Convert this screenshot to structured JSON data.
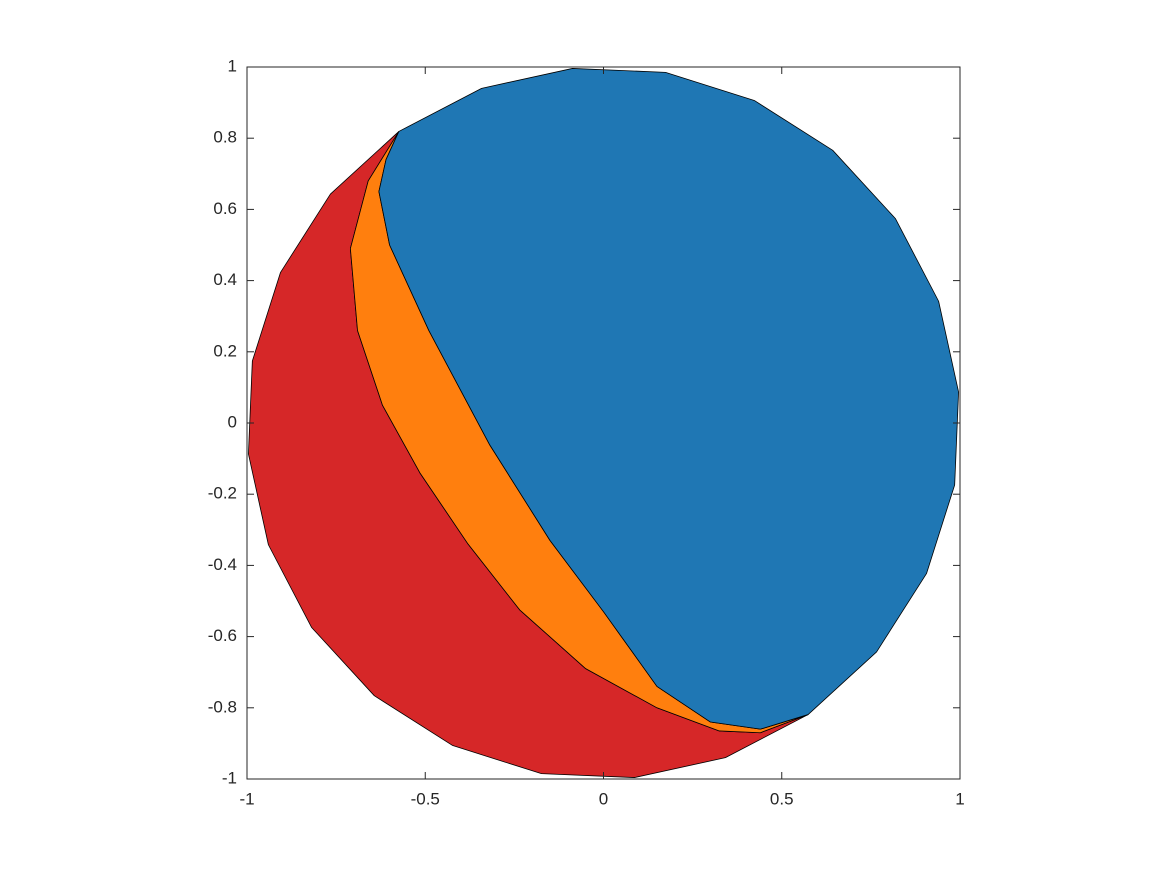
{
  "chart_data": {
    "type": "patch",
    "xlim": [
      -1,
      1
    ],
    "ylim": [
      -1,
      1
    ],
    "xticks": [
      -1,
      -0.5,
      0,
      0.5,
      1
    ],
    "yticks": [
      -1,
      -0.8,
      -0.6,
      -0.4,
      -0.2,
      0,
      0.2,
      0.4,
      0.6,
      0.8,
      1
    ],
    "series": [
      {
        "color": "#d62728",
        "x": [
          -0.574,
          -0.766,
          -0.906,
          -0.985,
          -0.996,
          -0.94,
          -0.819,
          -0.643,
          -0.423,
          -0.174,
          0.087,
          0.342,
          0.574,
          0.44,
          0.325,
          0.15,
          -0.05,
          -0.235,
          -0.38,
          -0.515,
          -0.62,
          -0.69,
          -0.71,
          -0.66
        ],
        "y": [
          0.819,
          0.643,
          0.423,
          0.174,
          -0.087,
          -0.342,
          -0.574,
          -0.766,
          -0.906,
          -0.985,
          -0.996,
          -0.94,
          -0.819,
          -0.87,
          -0.865,
          -0.8,
          -0.69,
          -0.525,
          -0.34,
          -0.14,
          0.05,
          0.26,
          0.49,
          0.68
        ]
      },
      {
        "color": "#ff7f0e",
        "x": [
          -0.574,
          -0.66,
          -0.71,
          -0.69,
          -0.62,
          -0.515,
          -0.38,
          -0.235,
          -0.05,
          0.15,
          0.325,
          0.44,
          0.574,
          0.44,
          0.3,
          0.15,
          0.0,
          -0.15,
          -0.32,
          -0.49,
          -0.6,
          -0.63,
          -0.61
        ],
        "y": [
          0.819,
          0.68,
          0.49,
          0.26,
          0.05,
          -0.14,
          -0.34,
          -0.525,
          -0.69,
          -0.8,
          -0.865,
          -0.87,
          -0.819,
          -0.86,
          -0.84,
          -0.74,
          -0.53,
          -0.33,
          -0.06,
          0.26,
          0.5,
          0.65,
          0.74
        ]
      },
      {
        "color": "#1f77b4",
        "x": [
          -0.574,
          -0.342,
          -0.087,
          0.174,
          0.423,
          0.643,
          0.819,
          0.94,
          0.996,
          0.985,
          0.906,
          0.766,
          0.574,
          0.44,
          0.3,
          0.15,
          0.0,
          -0.15,
          -0.32,
          -0.49,
          -0.6,
          -0.63,
          -0.61
        ],
        "y": [
          0.819,
          0.94,
          0.996,
          0.985,
          0.906,
          0.766,
          0.574,
          0.342,
          0.087,
          -0.174,
          -0.423,
          -0.643,
          -0.819,
          -0.86,
          -0.84,
          -0.74,
          -0.53,
          -0.33,
          -0.06,
          0.26,
          0.5,
          0.65,
          0.74
        ]
      }
    ]
  }
}
